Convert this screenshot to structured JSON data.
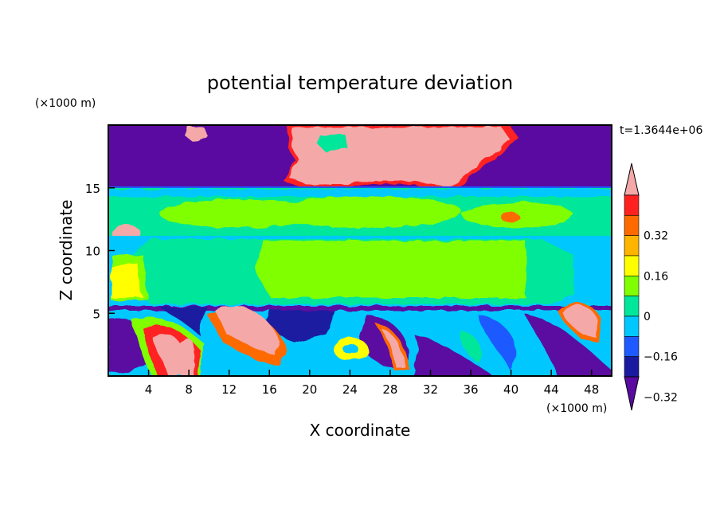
{
  "chart_data": {
    "type": "heatmap",
    "title": "potential temperature deviation",
    "xlabel": "X coordinate",
    "ylabel": "Z coordinate",
    "x_units": "(×1000 m)",
    "y_units": "(×1000 m)",
    "time_label": "t=1.3644e+06",
    "xlim": [
      0,
      50
    ],
    "ylim": [
      0,
      20
    ],
    "x_ticks": [
      4,
      8,
      12,
      16,
      20,
      24,
      28,
      32,
      36,
      40,
      44,
      48
    ],
    "y_ticks": [
      5,
      10,
      15
    ],
    "colorbar": {
      "levels": [
        -0.4,
        -0.32,
        -0.24,
        -0.16,
        -0.08,
        0,
        0.08,
        0.16,
        0.24,
        0.32,
        0.4
      ],
      "colors": [
        "#5a0aa0",
        "#1a1aa0",
        "#1e5aff",
        "#00c8ff",
        "#00e69a",
        "#80ff00",
        "#ffff00",
        "#ffb400",
        "#ff6a00",
        "#ff2020",
        "#f4a8a8"
      ],
      "labels": [
        "0.32",
        "0.16",
        "0",
        "-0.16",
        "-0.32"
      ]
    },
    "fields": [
      {
        "name": "upper negative layer",
        "x": [
          0,
          50
        ],
        "z": [
          15,
          19.8
        ],
        "value": -0.4
      },
      {
        "name": "upper warm plume",
        "x": [
          18,
          40
        ],
        "z": [
          14.8,
          19.8
        ],
        "value": 0.4
      },
      {
        "name": "mid layer",
        "x": [
          0,
          50
        ],
        "z": [
          11,
          15
        ],
        "value": 0.04
      },
      {
        "name": "central block",
        "x": [
          10,
          42
        ],
        "z": [
          5.7,
          11
        ],
        "value": 0.02
      },
      {
        "name": "lower mixed layer",
        "x": [
          0,
          50
        ],
        "z": [
          0,
          5.7
        ],
        "value": -0.12
      },
      {
        "name": "warm bubble 1",
        "x": [
          4,
          9
        ],
        "z": [
          0,
          4.5
        ],
        "value": 0.4
      },
      {
        "name": "warm bubble 2",
        "x": [
          11,
          17
        ],
        "z": [
          2,
          6
        ],
        "value": 0.4
      },
      {
        "name": "warm bubble 3",
        "x": [
          27,
          30
        ],
        "z": [
          0.8,
          2.5
        ],
        "value": 0.3
      },
      {
        "name": "warm bubble 4",
        "x": [
          45,
          48
        ],
        "z": [
          3,
          6
        ],
        "value": 0.4
      }
    ]
  }
}
